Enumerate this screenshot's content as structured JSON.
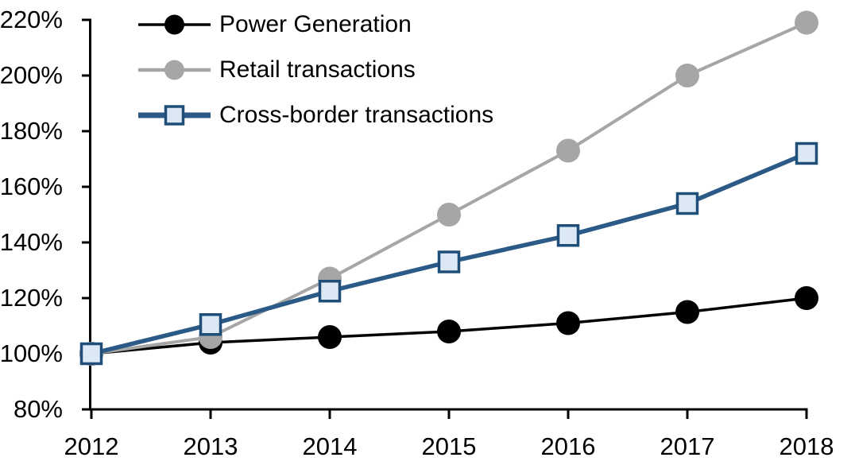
{
  "page": {
    "background": "#ffffff",
    "axis_color": "#000000"
  },
  "chart_data": {
    "type": "line",
    "title": "",
    "xlabel": "",
    "ylabel": "",
    "grid": false,
    "legend_position": "top-left",
    "x": [
      2012,
      2013,
      2014,
      2015,
      2016,
      2017,
      2018
    ],
    "x_labels": [
      "2012",
      "2013",
      "2014",
      "2015",
      "2016",
      "2017",
      "2018"
    ],
    "y_ticks": [
      80,
      100,
      120,
      140,
      160,
      180,
      200,
      220
    ],
    "y_tick_labels": [
      "80%",
      "100%",
      "120%",
      "140%",
      "160%",
      "180%",
      "200%",
      "220%"
    ],
    "ylim": [
      80,
      220
    ],
    "series": [
      {
        "name": "Power Generation",
        "values": [
          100,
          104,
          106,
          108,
          111,
          115,
          120
        ],
        "color": "#000000",
        "marker": "circle",
        "marker_fill": "#000000",
        "marker_stroke": "#000000",
        "line_width": 3.5,
        "legend_line_width": 3.5
      },
      {
        "name": "Retail transactions",
        "values": [
          100,
          106,
          127,
          150,
          173,
          200,
          219
        ],
        "color": "#A6A6A6",
        "marker": "circle",
        "marker_fill": "#A6A6A6",
        "marker_stroke": "#A6A6A6",
        "line_width": 4,
        "legend_line_width": 4.5
      },
      {
        "name": "Cross-border transactions",
        "values": [
          100,
          110.5,
          122.5,
          133,
          142.5,
          154,
          172
        ],
        "color": "#2B5A87",
        "marker": "square",
        "marker_fill": "#DCE9F5",
        "marker_stroke": "#1F4E79",
        "line_width": 5.5,
        "legend_line_width": 7
      }
    ]
  }
}
